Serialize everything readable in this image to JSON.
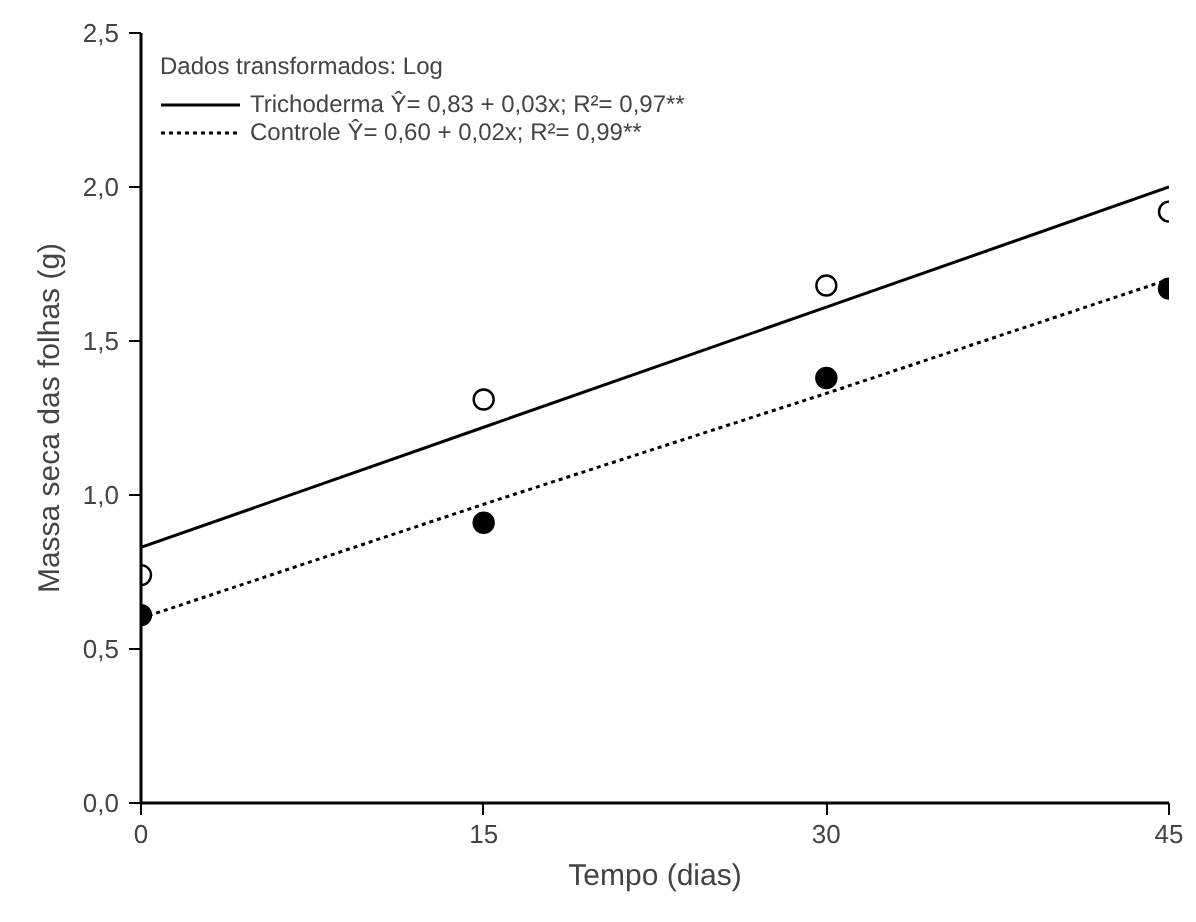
{
  "chart_data": {
    "type": "scatter",
    "xlabel": "Tempo (dias)",
    "ylabel": "Massa seca das folhas (g)",
    "legend_title": "Dados transformados: Log",
    "x": [
      0,
      15,
      30,
      45
    ],
    "series": [
      {
        "type": "line",
        "name": "Trichoderma Ŷ= 0,83 + 0,03x; R²= 0,97**",
        "color": "#000000",
        "line_style": "solid",
        "values": [
          0.83,
          1.22,
          1.61,
          2.0
        ]
      },
      {
        "type": "line",
        "name": "Controle Ŷ= 0,60 + 0,02x; R²= 0,99**",
        "color": "#000000",
        "line_style": "dotted",
        "values": [
          0.6,
          0.97,
          1.33,
          1.7
        ]
      },
      {
        "color": "#ffffff",
        "marker": "circle",
        "values": [
          0.74,
          1.31,
          1.68,
          1.92
        ]
      },
      {
        "color": "#000000",
        "marker": "circle",
        "values": [
          0.61,
          0.91,
          1.38,
          1.67
        ]
      }
    ],
    "xlim": [
      0,
      45
    ],
    "xticks": [
      0,
      15,
      30,
      45
    ],
    "ylim": [
      0,
      2.5
    ],
    "yticks": [
      {
        "value": 0,
        "label": "0,0"
      },
      {
        "value": 0.5,
        "label": "0,5"
      },
      {
        "value": 1,
        "label": "1,0"
      },
      {
        "value": 1.5,
        "label": "1,5"
      },
      {
        "value": 2,
        "label": "2,0"
      },
      {
        "value": 2.5,
        "label": "2,5"
      }
    ],
    "grid": false,
    "legend": "top left"
  }
}
